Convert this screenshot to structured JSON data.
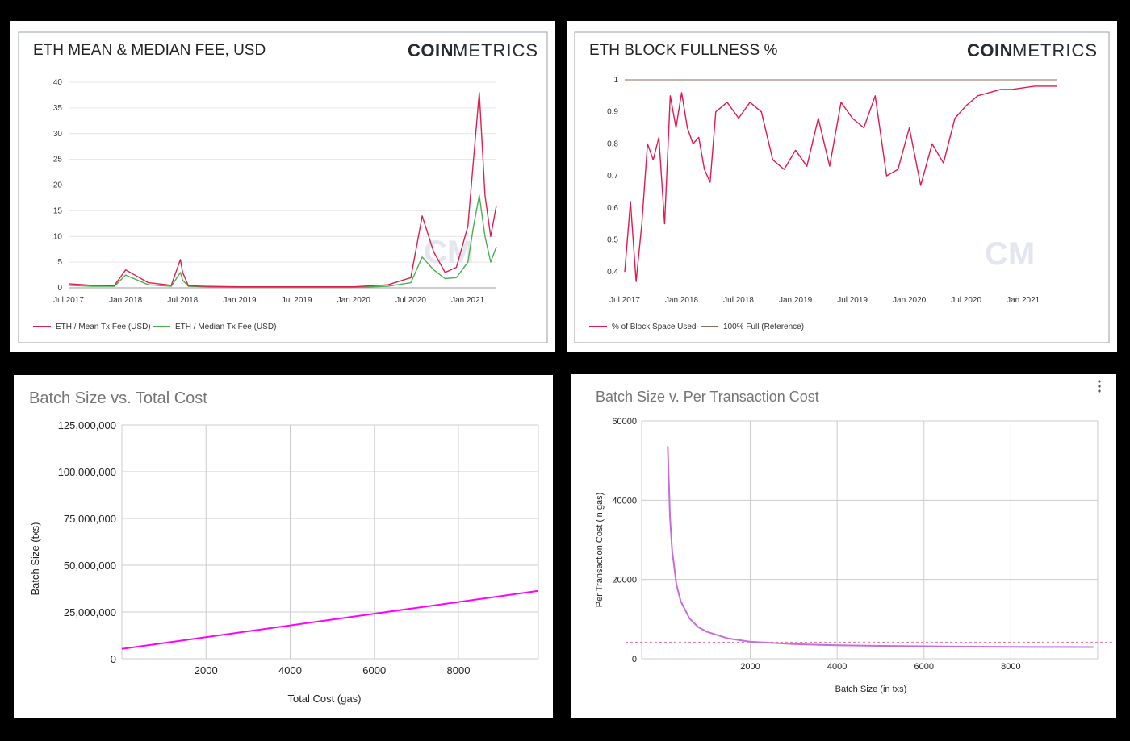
{
  "colors": {
    "mean": "#dc1f4e",
    "median": "#4cb050",
    "fullness": "#e5174d",
    "reference": "#8b6b5a",
    "magenta": "#ff00ff",
    "violet": "#c86be0",
    "dashed": "#e57399"
  },
  "logo": {
    "bold": "COIN",
    "light": "METRICS"
  },
  "watermark": "CM",
  "chart_data": [
    {
      "type": "line",
      "title": "ETH MEAN & MEDIAN FEE, USD",
      "x_ticks": [
        "Jul 2017",
        "Jan 2018",
        "Jul 2018",
        "Jan 2019",
        "Jul 2019",
        "Jan 2020",
        "Jul 2020",
        "Jan 2021"
      ],
      "y_ticks": [
        "0",
        "5",
        "10",
        "15",
        "20",
        "25",
        "30",
        "35",
        "40"
      ],
      "ylim": [
        0,
        40
      ],
      "legend_position": "bottom-left",
      "series": [
        {
          "name": "ETH / Mean Tx Fee (USD)",
          "x": [
            2017.5,
            2017.7,
            2017.9,
            2018.0,
            2018.2,
            2018.4,
            2018.48,
            2018.5,
            2018.55,
            2018.7,
            2019.0,
            2019.5,
            2020.0,
            2020.3,
            2020.5,
            2020.6,
            2020.7,
            2020.8,
            2020.9,
            2021.0,
            2021.05,
            2021.1,
            2021.15,
            2021.2,
            2021.25
          ],
          "values": [
            0.8,
            0.5,
            0.4,
            3.5,
            1.0,
            0.5,
            5.5,
            3.0,
            0.4,
            0.3,
            0.2,
            0.2,
            0.2,
            0.6,
            2.0,
            14,
            7,
            3,
            4,
            12,
            25,
            38,
            18,
            10,
            16
          ]
        },
        {
          "name": "ETH / Median Tx Fee (USD)",
          "x": [
            2017.5,
            2017.7,
            2017.9,
            2018.0,
            2018.2,
            2018.4,
            2018.48,
            2018.5,
            2018.55,
            2018.7,
            2019.0,
            2019.5,
            2020.0,
            2020.3,
            2020.5,
            2020.6,
            2020.7,
            2020.8,
            2020.9,
            2021.0,
            2021.05,
            2021.1,
            2021.15,
            2021.2,
            2021.25
          ],
          "values": [
            0.5,
            0.3,
            0.3,
            2.5,
            0.6,
            0.3,
            3.0,
            1.5,
            0.3,
            0.2,
            0.1,
            0.1,
            0.1,
            0.3,
            1.0,
            6,
            3.5,
            1.8,
            2.0,
            5,
            12,
            18,
            10,
            5,
            8
          ]
        }
      ]
    },
    {
      "type": "line",
      "title": "ETH BLOCK FULLNESS %",
      "x_ticks": [
        "Jul 2017",
        "Jan 2018",
        "Jul 2018",
        "Jan 2019",
        "Jul 2019",
        "Jan 2020",
        "Jul 2020",
        "Jan 2021"
      ],
      "y_ticks": [
        "0.4",
        "0.5",
        "0.6",
        "0.7",
        "0.8",
        "0.9",
        "1"
      ],
      "ylim": [
        0.35,
        1
      ],
      "legend_position": "bottom-left",
      "series": [
        {
          "name": "% of Block Space Used",
          "x": [
            2017.5,
            2017.55,
            2017.6,
            2017.65,
            2017.7,
            2017.75,
            2017.8,
            2017.85,
            2017.9,
            2017.95,
            2018.0,
            2018.05,
            2018.1,
            2018.15,
            2018.2,
            2018.25,
            2018.3,
            2018.4,
            2018.5,
            2018.6,
            2018.7,
            2018.8,
            2018.9,
            2019.0,
            2019.1,
            2019.2,
            2019.3,
            2019.4,
            2019.5,
            2019.6,
            2019.7,
            2019.8,
            2019.9,
            2020.0,
            2020.1,
            2020.2,
            2020.3,
            2020.4,
            2020.5,
            2020.6,
            2020.7,
            2020.8,
            2020.9,
            2021.0,
            2021.1,
            2021.2,
            2021.3
          ],
          "values": [
            0.4,
            0.62,
            0.37,
            0.55,
            0.8,
            0.75,
            0.82,
            0.55,
            0.95,
            0.85,
            0.96,
            0.85,
            0.8,
            0.82,
            0.72,
            0.68,
            0.9,
            0.93,
            0.88,
            0.93,
            0.9,
            0.75,
            0.72,
            0.78,
            0.73,
            0.88,
            0.73,
            0.93,
            0.88,
            0.85,
            0.95,
            0.7,
            0.72,
            0.85,
            0.67,
            0.8,
            0.74,
            0.88,
            0.92,
            0.95,
            0.96,
            0.97,
            0.97,
            0.975,
            0.98,
            0.98,
            0.98
          ]
        },
        {
          "name": "100% Full (Reference)",
          "x": [
            2017.5,
            2021.3
          ],
          "values": [
            1,
            1
          ]
        }
      ]
    },
    {
      "type": "line",
      "title": "Batch Size vs. Total Cost",
      "xlabel": "Total Cost (gas)",
      "ylabel": "Batch Size (txs)",
      "x_ticks": [
        "2000",
        "4000",
        "6000",
        "8000"
      ],
      "y_ticks": [
        "0",
        "25,000,000",
        "50,000,000",
        "75,000,000",
        "100,000,000",
        "125,000,000"
      ],
      "xlim": [
        0,
        9900
      ],
      "ylim": [
        0,
        125000000
      ],
      "series": [
        {
          "x": [
            0,
            9900
          ],
          "values": [
            5300000,
            36300000
          ]
        }
      ]
    },
    {
      "type": "line",
      "title": "Batch Size v. Per Transaction Cost",
      "xlabel": "Batch Size (in txs)",
      "ylabel": "Per Transaction Cost (in gas)",
      "x_ticks": [
        "2000",
        "4000",
        "6000",
        "8000"
      ],
      "y_ticks": [
        "0",
        "20000",
        "40000",
        "60000"
      ],
      "xlim": [
        -500,
        10000
      ],
      "ylim": [
        0,
        60000
      ],
      "series": [
        {
          "x": [
            100,
            150,
            200,
            300,
            400,
            600,
            800,
            1000,
            1500,
            2000,
            3000,
            4000,
            5000,
            6000,
            7000,
            8000,
            9000,
            9900
          ],
          "values": [
            53600,
            36000,
            27400,
            18800,
            14500,
            10200,
            8000,
            6800,
            5100,
            4300,
            3700,
            3400,
            3250,
            3150,
            3050,
            3000,
            2970,
            2950
          ]
        }
      ],
      "reference_value": 4200
    }
  ]
}
